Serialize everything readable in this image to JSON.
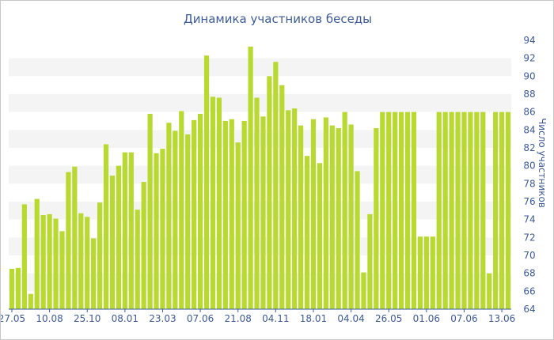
{
  "chart_data": {
    "type": "bar",
    "title": "Динамика участников беседы",
    "xlabel": "",
    "ylabel": "Число участников",
    "ylim": [
      64,
      94
    ],
    "yticks": [
      64,
      66,
      68,
      70,
      72,
      74,
      76,
      78,
      80,
      82,
      84,
      86,
      88,
      90,
      92,
      94
    ],
    "y_axis_side": "right",
    "bar_color": "#b8d930",
    "band_color": "#f4f4f4",
    "x_tick_labels": [
      {
        "label": "27.05",
        "index": 0
      },
      {
        "label": "10.08",
        "index": 6
      },
      {
        "label": "25.10",
        "index": 12
      },
      {
        "label": "08.01",
        "index": 18
      },
      {
        "label": "23.03",
        "index": 24
      },
      {
        "label": "07.06",
        "index": 30
      },
      {
        "label": "21.08",
        "index": 36
      },
      {
        "label": "04.11",
        "index": 42
      },
      {
        "label": "18.01",
        "index": 48
      },
      {
        "label": "04.04",
        "index": 54
      },
      {
        "label": "26.05",
        "index": 60
      },
      {
        "label": "01.06",
        "index": 66
      },
      {
        "label": "07.06",
        "index": 72
      },
      {
        "label": "13.06",
        "index": 78
      }
    ],
    "values": [
      68.5,
      68.6,
      75.7,
      65.7,
      76.3,
      74.5,
      74.6,
      74.1,
      72.7,
      79.3,
      79.9,
      74.7,
      74.3,
      71.9,
      75.9,
      82.4,
      78.9,
      80.0,
      81.5,
      81.5,
      75.1,
      78.2,
      85.8,
      81.4,
      81.9,
      84.8,
      83.9,
      86.1,
      83.5,
      85.1,
      85.8,
      92.3,
      87.7,
      87.6,
      85.0,
      85.2,
      82.6,
      85.0,
      93.3,
      87.6,
      85.5,
      90.0,
      91.6,
      89.0,
      86.2,
      86.4,
      84.5,
      81.1,
      85.2,
      80.3,
      85.4,
      84.5,
      84.2,
      86.0,
      84.6,
      79.4,
      68.1,
      74.6,
      84.2,
      86.0,
      86.0,
      86.0,
      86.0,
      86.0,
      86.0,
      72.1,
      72.1,
      72.1,
      86.0,
      86.0,
      86.0,
      86.0,
      86.0,
      86.0,
      86.0,
      86.0,
      68.0,
      86.0,
      86.0,
      86.0
    ]
  }
}
